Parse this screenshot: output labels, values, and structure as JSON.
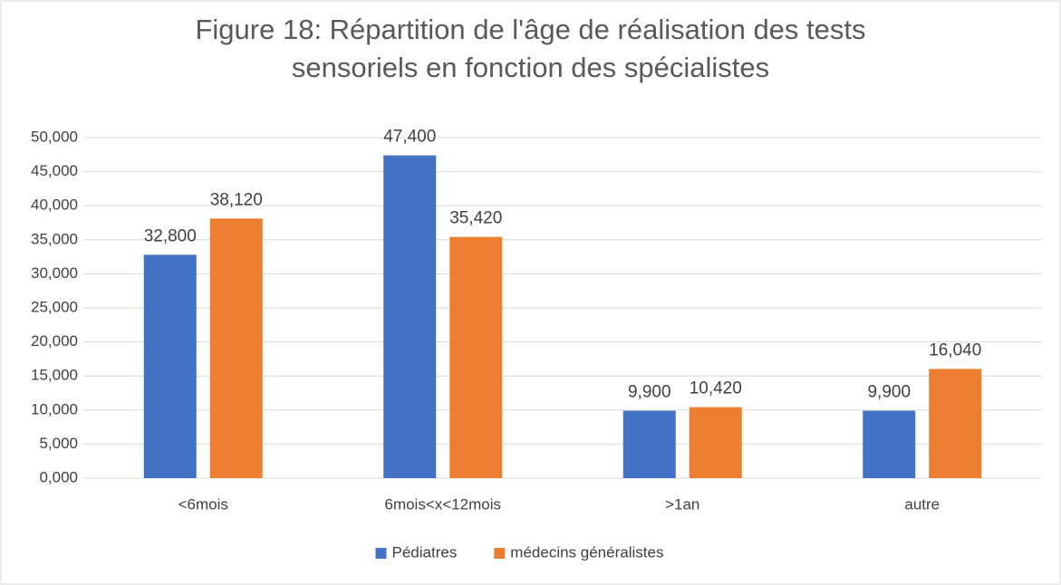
{
  "chart_data": {
    "type": "bar",
    "title": "Figure 18: Répartition de l'âge de réalisation des tests\nsensoriels en fonction des spécialistes",
    "categories": [
      "<6mois",
      "6mois<x<12mois",
      ">1an",
      "autre"
    ],
    "series": [
      {
        "name": "Pédiatres",
        "color": "#4472c4",
        "values": [
          32.8,
          47.4,
          9.9,
          9.9
        ],
        "value_labels": [
          "32,800",
          "47,400",
          "9,900",
          "9,900"
        ]
      },
      {
        "name": "médecins généralistes",
        "color": "#ed7d31",
        "values": [
          38.12,
          35.42,
          10.42,
          16.04
        ],
        "value_labels": [
          "38,120",
          "35,420",
          "10,420",
          "16,040"
        ]
      }
    ],
    "ylim": [
      0,
      50
    ],
    "yticks": [
      {
        "value": 0,
        "label": "0,000"
      },
      {
        "value": 5,
        "label": "5,000"
      },
      {
        "value": 10,
        "label": "10,000"
      },
      {
        "value": 15,
        "label": "15,000"
      },
      {
        "value": 20,
        "label": "20,000"
      },
      {
        "value": 25,
        "label": "25,000"
      },
      {
        "value": 30,
        "label": "30,000"
      },
      {
        "value": 35,
        "label": "35,000"
      },
      {
        "value": 40,
        "label": "40,000"
      },
      {
        "value": 45,
        "label": "45,000"
      },
      {
        "value": 50,
        "label": "50,000"
      }
    ],
    "grid": true,
    "legend": "bottom"
  }
}
